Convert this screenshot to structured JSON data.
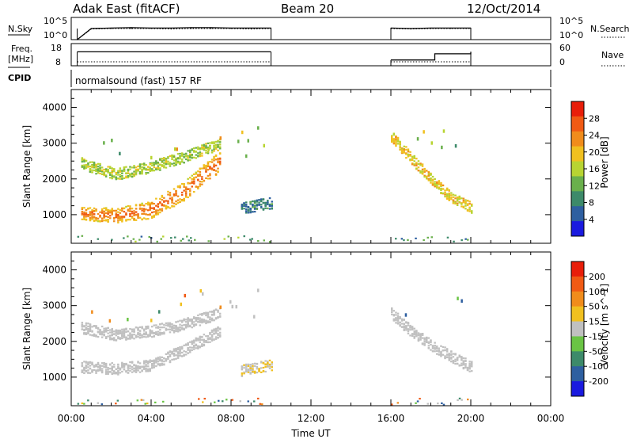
{
  "header": {
    "station": "Adak East (fitACF)",
    "beam": "Beam 20",
    "date": "12/Oct/2014"
  },
  "noise_panel": {
    "left_label": "N.Sky",
    "right_label": "N.Search",
    "left_ticks": [
      "10^5",
      "10^0"
    ],
    "right_ticks": [
      "10^5",
      "10^0"
    ]
  },
  "freq_panel": {
    "left_label_line1": "Freq.",
    "left_label_line2": "[MHz]",
    "right_label": "Nave",
    "left_ticks": [
      "18",
      "8"
    ],
    "right_ticks": [
      "60",
      "0"
    ]
  },
  "cpid_panel": {
    "label": "CPID",
    "text": "normalsound (fast) 157 RF"
  },
  "colors": {
    "power": [
      "#1a1adf",
      "#2e5fa0",
      "#3d8a6a",
      "#6ab04c",
      "#b8d432",
      "#f0c020",
      "#f08c1c",
      "#f05a14",
      "#e81e0a"
    ],
    "velocity": [
      "#1a1adf",
      "#2e5fa0",
      "#3d8a6a",
      "#6ac444",
      "#c0c0c0",
      "#f0c020",
      "#f08c1c",
      "#f05a14",
      "#e81e0a"
    ]
  },
  "chart_data": [
    {
      "type": "line",
      "panel": "noise",
      "x": [
        0.3,
        1,
        2,
        3,
        4,
        5,
        6,
        7,
        8,
        9,
        10,
        16,
        17,
        18,
        19,
        20
      ],
      "series": [
        {
          "name": "N.Sky",
          "values": [
            0,
            2.5,
            2.6,
            2.7,
            2.6,
            2.6,
            2.7,
            2.7,
            2.6,
            2.6,
            2.6,
            2.6,
            2.5,
            2.6,
            2.6,
            2.6
          ]
        },
        {
          "name": "N.Search",
          "values": [
            0,
            2.4,
            2.5,
            2.5,
            2.5,
            2.4,
            2.5,
            2.5,
            2.5,
            2.4,
            2.5,
            2.5,
            2.4,
            2.5,
            2.5,
            2.5
          ]
        }
      ],
      "ylim": [
        0,
        5
      ]
    },
    {
      "type": "line",
      "panel": "frequency",
      "x": [
        0.3,
        10,
        16,
        18.2,
        20
      ],
      "series": [
        {
          "name": "Freq.",
          "values": [
            14.3,
            14.3,
            10.6,
            13.4,
            14.3
          ]
        },
        {
          "name": "Nave",
          "values": [
            0,
            0,
            0,
            0,
            0
          ]
        }
      ],
      "ylim": [
        8,
        18
      ]
    },
    {
      "type": "heatmap",
      "panel": "power",
      "xlabel": "",
      "ylabel": "Slant Range [km]",
      "xlim": [
        0,
        24
      ],
      "ylim": [
        200,
        4500
      ],
      "yticks": [
        "1000",
        "2000",
        "3000",
        "4000"
      ],
      "colorbar": {
        "label": "Power [dB]",
        "ticks": [
          "28",
          "24",
          "20",
          "16",
          "12",
          "8",
          "4"
        ],
        "range": [
          0,
          30
        ]
      },
      "features": [
        {
          "x": [
            0.5,
            7.4
          ],
          "range": [
            2450,
            2150,
            2350,
            2650,
            3000
          ],
          "value": 14
        },
        {
          "x": [
            0.5,
            7.4
          ],
          "range": [
            1050,
            1000,
            1150,
            1700,
            2500
          ],
          "value": 26
        },
        {
          "x": [
            8.5,
            10.0
          ],
          "range": [
            1200,
            1350
          ],
          "value": 6
        },
        {
          "x": [
            16.0,
            20.0
          ],
          "range": [
            3200,
            2600,
            2000,
            1500,
            1200
          ],
          "value": 18
        }
      ]
    },
    {
      "type": "heatmap",
      "panel": "velocity",
      "xlabel": "Time UT",
      "ylabel": "Slant Range [km]",
      "xlim": [
        0,
        24
      ],
      "ylim": [
        200,
        4500
      ],
      "xticks": [
        "00:00",
        "04:00",
        "08:00",
        "12:00",
        "16:00",
        "20:00",
        "00:00"
      ],
      "yticks": [
        "1000",
        "2000",
        "3000",
        "4000"
      ],
      "colorbar": {
        "label": "Velocity [m s^-1]",
        "ticks": [
          "200",
          "100",
          "50",
          "15",
          "-15",
          "-50",
          "-100",
          "-200"
        ],
        "range": [
          -250,
          250
        ]
      },
      "features": [
        {
          "x": [
            0.5,
            7.4
          ],
          "range": [
            1300,
            1250,
            1350,
            1800,
            2300
          ],
          "value": 0
        },
        {
          "x": [
            0.5,
            7.4
          ],
          "range": [
            2400,
            2200,
            2300,
            2500,
            2800
          ],
          "value": 0
        },
        {
          "x": [
            8.5,
            10.0
          ],
          "range": [
            1200,
            1350
          ],
          "value": 30
        },
        {
          "x": [
            16.0,
            20.0
          ],
          "range": [
            2800,
            2300,
            1900,
            1600,
            1300
          ],
          "value": 0
        }
      ]
    }
  ]
}
